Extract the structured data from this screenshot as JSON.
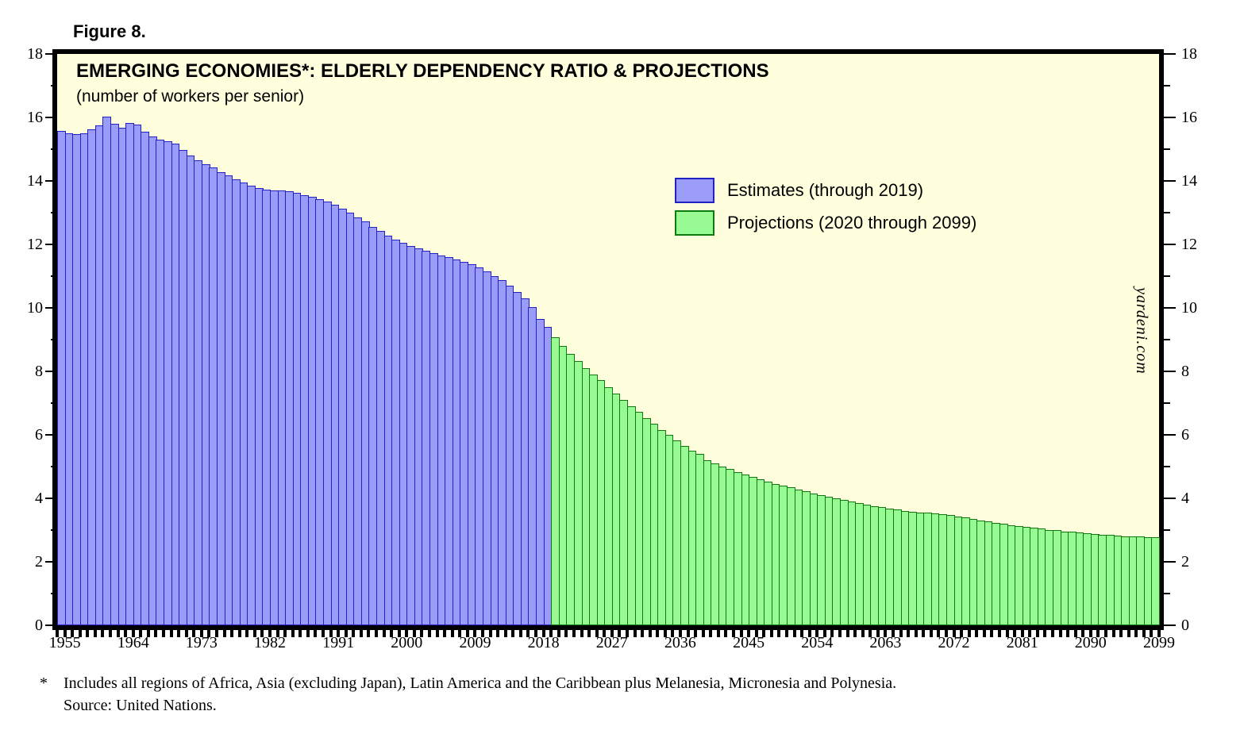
{
  "figure_label": "Figure 8.",
  "chart": {
    "title": "EMERGING ECONOMIES*: ELDERLY DEPENDENCY RATIO & PROJECTIONS",
    "subtitle": "(number of workers per senior)",
    "watermark": "yardeni.com",
    "legend": [
      {
        "label": "Estimates (through 2019)",
        "fill": "#9B9BF8",
        "border": "#2121C8"
      },
      {
        "label": "Projections (2020 through 2099)",
        "fill": "#98FA92",
        "border": "#0E7A0E"
      }
    ]
  },
  "footnote": {
    "marker": "*",
    "text": "Includes all regions of Africa, Asia (excluding Japan), Latin America and the Caribbean plus Melanesia, Micronesia and Polynesia.",
    "source": "Source: United Nations."
  },
  "chart_data": {
    "type": "bar",
    "title": "EMERGING ECONOMIES*: ELDERLY DEPENDENCY RATIO & PROJECTIONS",
    "subtitle": "(number of workers per senior)",
    "ylabel": "number of workers per senior",
    "ylim": [
      0,
      18
    ],
    "y_tick_step": 2,
    "y_minor_tick_step": 1,
    "y_tick_labels": [
      "0",
      "2",
      "4",
      "6",
      "8",
      "10",
      "12",
      "14",
      "16",
      "18"
    ],
    "x_first_year": 1955,
    "x_last_year": 2099,
    "x_tick_labels": [
      "1955",
      "1964",
      "1973",
      "1982",
      "1991",
      "2000",
      "2009",
      "2018",
      "2027",
      "2036",
      "2045",
      "2054",
      "2063",
      "2072",
      "2081",
      "2090",
      "2099"
    ],
    "grid": false,
    "legend_position": "upper-right-inside",
    "plot_background": "#FFFFDE",
    "axes_on_both_sides": true,
    "series": [
      {
        "name": "Estimates (through 2019)",
        "first_year": 1955,
        "last_year": 2019,
        "fill": "#9B9BF8",
        "border": "#2121C8",
        "values": [
          15.57,
          15.5,
          15.47,
          15.5,
          15.62,
          15.75,
          16.03,
          15.8,
          15.68,
          15.82,
          15.78,
          15.55,
          15.4,
          15.3,
          15.24,
          15.17,
          14.97,
          14.8,
          14.65,
          14.53,
          14.42,
          14.28,
          14.17,
          14.06,
          13.96,
          13.86,
          13.78,
          13.73,
          13.7,
          13.69,
          13.68,
          13.62,
          13.56,
          13.5,
          13.42,
          13.34,
          13.24,
          13.12,
          13.0,
          12.86,
          12.73,
          12.56,
          12.42,
          12.28,
          12.15,
          12.05,
          11.95,
          11.87,
          11.79,
          11.72,
          11.66,
          11.6,
          11.52,
          11.45,
          11.38,
          11.28,
          11.15,
          11.01,
          10.87,
          10.7,
          10.51,
          10.31,
          10.02,
          9.66,
          9.4
        ]
      },
      {
        "name": "Projections (2020 through 2099)",
        "first_year": 2020,
        "last_year": 2099,
        "fill": "#98FA92",
        "border": "#0E7A0E",
        "values": [
          9.07,
          8.8,
          8.55,
          8.33,
          8.11,
          7.89,
          7.72,
          7.5,
          7.31,
          7.09,
          6.91,
          6.72,
          6.53,
          6.34,
          6.16,
          6.0,
          5.83,
          5.66,
          5.51,
          5.4,
          5.21,
          5.1,
          5.0,
          4.92,
          4.83,
          4.75,
          4.67,
          4.6,
          4.52,
          4.46,
          4.39,
          4.34,
          4.27,
          4.22,
          4.15,
          4.1,
          4.05,
          3.99,
          3.94,
          3.89,
          3.84,
          3.8,
          3.76,
          3.72,
          3.68,
          3.64,
          3.6,
          3.58,
          3.56,
          3.55,
          3.53,
          3.5,
          3.47,
          3.43,
          3.39,
          3.35,
          3.31,
          3.27,
          3.23,
          3.19,
          3.16,
          3.13,
          3.1,
          3.07,
          3.04,
          3.01,
          2.99,
          2.96,
          2.94,
          2.92,
          2.9,
          2.88,
          2.86,
          2.84,
          2.83,
          2.81,
          2.8,
          2.79,
          2.78,
          2.78
        ]
      }
    ]
  }
}
